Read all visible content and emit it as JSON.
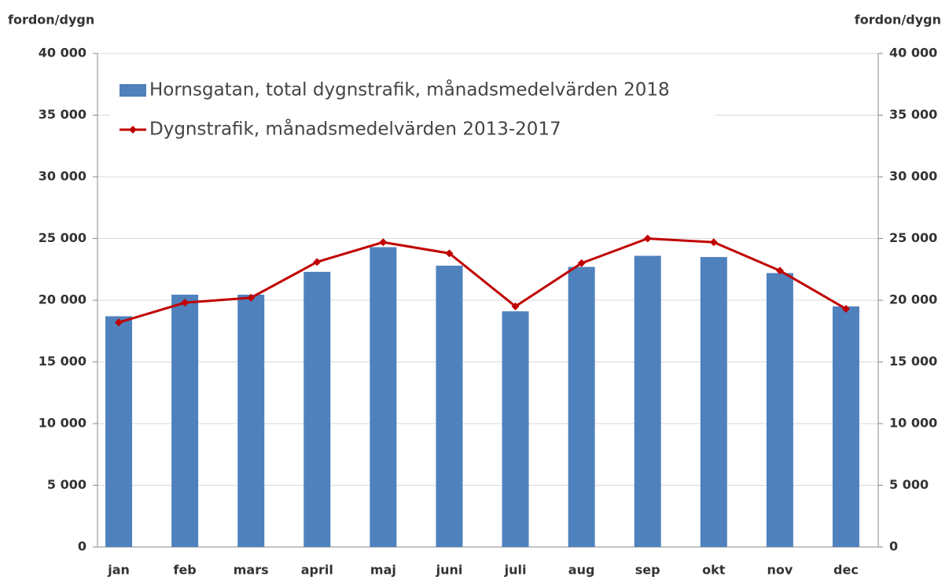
{
  "chart_data": {
    "type": "bar",
    "y_label": "fordon/dygn",
    "y2_label": "fordon/dygn",
    "categories": [
      "jan",
      "feb",
      "mars",
      "april",
      "maj",
      "juni",
      "juli",
      "aug",
      "sep",
      "okt",
      "nov",
      "dec"
    ],
    "series": [
      {
        "name": "Hornsgatan, total dygnstrafik, månadsmedelvärden 2018",
        "type": "bar",
        "color": "#4f81bd",
        "values": [
          18700,
          20450,
          20450,
          22300,
          24300,
          22800,
          19100,
          22700,
          23600,
          23500,
          22200,
          19500
        ]
      },
      {
        "name": "Dygnstrafik, månadsmedelvärden 2013-2017",
        "type": "line",
        "axis": "y2",
        "color": "#c00000",
        "values": [
          18200,
          19800,
          20200,
          23100,
          24700,
          23800,
          19500,
          23000,
          25000,
          24700,
          22400,
          19300
        ]
      }
    ],
    "ylim": [
      0,
      40000
    ],
    "yticks": [
      0,
      {
        "value": 5000,
        "label": "5 000"
      },
      {
        "value": 10000,
        "label": "10 000"
      },
      {
        "value": 15000,
        "label": "15 000"
      },
      {
        "value": 20000,
        "label": "20 000"
      },
      {
        "value": 25000,
        "label": "25 000"
      },
      {
        "value": 30000,
        "label": "30 000"
      },
      {
        "value": 35000,
        "label": "35 000"
      },
      {
        "value": 40000,
        "label": "40 000"
      }
    ],
    "y2lim": [
      0,
      40000
    ],
    "y2ticks": [
      0,
      {
        "value": 5000,
        "label": "5 000"
      },
      {
        "value": 10000,
        "label": "10 000"
      },
      {
        "value": 15000,
        "label": "15 000"
      },
      {
        "value": 20000,
        "label": "20 000"
      },
      {
        "value": 25000,
        "label": "25 000"
      },
      {
        "value": 30000,
        "label": "30 000"
      },
      {
        "value": 35000,
        "label": "35 000"
      },
      {
        "value": 40000,
        "label": "40 000"
      }
    ],
    "grid": true,
    "legend": "top-left"
  }
}
